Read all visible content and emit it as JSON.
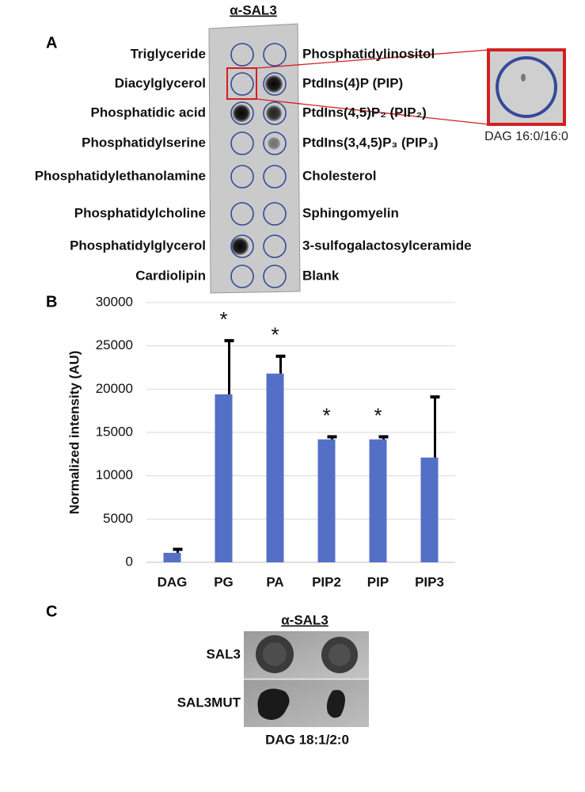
{
  "panel_a": {
    "label": "A",
    "antibody": "α-SAL3",
    "left_lipids": [
      "Triglyceride",
      "Diacylglycerol",
      "Phosphatidic acid",
      "Phosphatidylserine",
      "Phosphatidylethanolamine",
      "Phosphatidylcholine",
      "Phosphatidylglycerol",
      "Cardiolipin"
    ],
    "right_lipids": [
      "Phosphatidylinositol",
      "PtdIns(4)P (PIP)",
      "PtdIns(4,5)P₂ (PIP₂)",
      "PtdIns(3,4,5)P₃ (PIP₃)",
      "Cholesterol",
      "Sphingomyelin",
      "3-sulfogalactosylceramide",
      "Blank"
    ],
    "inset_label": "DAG 16:0/16:0"
  },
  "chart_data": {
    "label": "B",
    "type": "bar",
    "y_label": "Normalized intensity (AU)",
    "categories": [
      "DAG",
      "PG",
      "PA",
      "PIP2",
      "PIP",
      "PIP3"
    ],
    "values": [
      1100,
      19400,
      21800,
      14200,
      14200,
      12100
    ],
    "errors": [
      400,
      6200,
      2000,
      300,
      300,
      7000
    ],
    "significance": [
      null,
      "*",
      "*",
      "*",
      "*",
      null
    ],
    "color": "#5470c6",
    "error_color": "#000000",
    "ylim": [
      0,
      30000
    ],
    "yticks": [
      0,
      5000,
      10000,
      15000,
      20000,
      25000,
      30000
    ],
    "grid": true
  },
  "panel_c": {
    "label": "C",
    "antibody": "α-SAL3",
    "rows": [
      "SAL3",
      "SAL3MUT"
    ],
    "caption": "DAG 18:1/2:0"
  }
}
